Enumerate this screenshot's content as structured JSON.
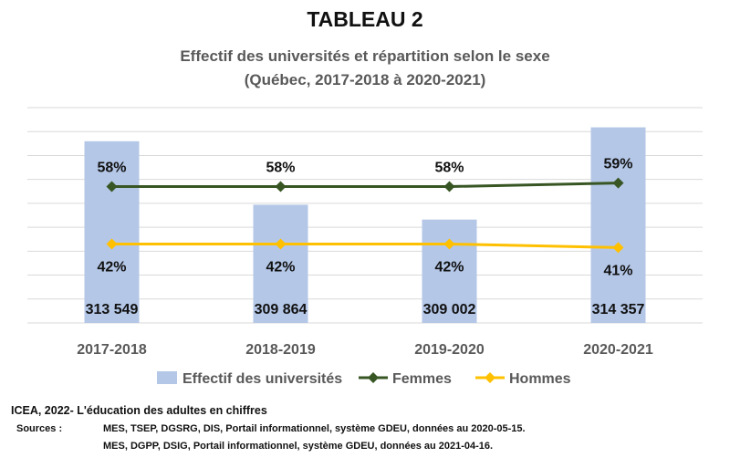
{
  "chart_data": {
    "type": "bar",
    "title": "TABLEAU 2",
    "subtitle_line1": "Effectif des universités et répartition selon le sexe",
    "subtitle_line2": "(Québec, 2017-2018 à 2020-2021)",
    "categories": [
      "2017-2018",
      "2018-2019",
      "2019-2020",
      "2020-2021"
    ],
    "bar_series": {
      "name": "Effectif des universités",
      "values": [
        313549,
        309864,
        309002,
        314357
      ],
      "value_labels": [
        "313 549",
        "309 864",
        "309 002",
        "314 357"
      ],
      "color": "#b4c7e7",
      "ylim": [
        303000,
        315500
      ]
    },
    "line_series": [
      {
        "name": "Femmes",
        "values": [
          58,
          58,
          58,
          59
        ],
        "value_labels": [
          "58%",
          "58%",
          "58%",
          "59%"
        ],
        "color": "#375623",
        "ylim": [
          20,
          80
        ]
      },
      {
        "name": "Hommes",
        "values": [
          42,
          42,
          42,
          41
        ],
        "value_labels": [
          "42%",
          "42%",
          "42%",
          "41%"
        ],
        "color": "#ffc000",
        "ylim": [
          20,
          80
        ]
      }
    ],
    "grid": true,
    "legend": "bottom"
  },
  "footer": {
    "title": "ICEA, 2022- L'éducation des adultes en chiffres",
    "sources_label": "Sources :",
    "sources": [
      "MES, TSEP, DGSRG, DIS, Portail informationnel, système GDEU, données au 2020-05-15.",
      "MES, DGPP, DSIG, Portail informationnel, système GDEU, données au 2021-04-16."
    ]
  }
}
